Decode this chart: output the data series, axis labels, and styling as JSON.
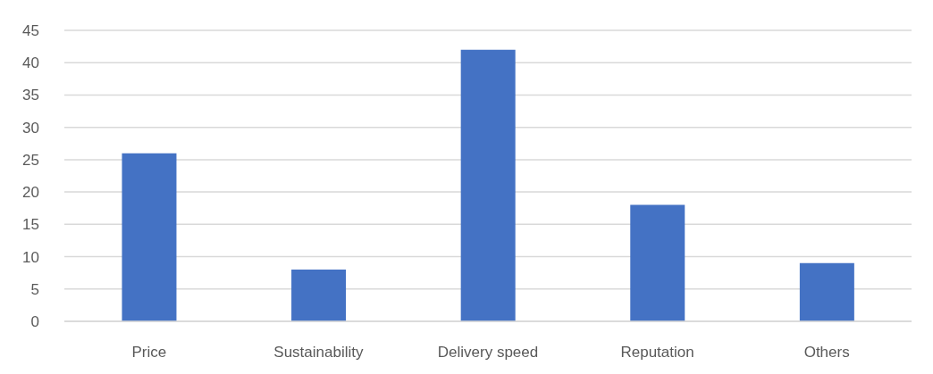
{
  "chart_data": {
    "type": "bar",
    "categories": [
      "Price",
      "Sustainability",
      "Delivery speed",
      "Reputation",
      "Others"
    ],
    "values": [
      26,
      8,
      42,
      18,
      9
    ],
    "color": "#4472c4",
    "ylim": [
      0,
      45
    ],
    "yticks": [
      0,
      5,
      10,
      15,
      20,
      25,
      30,
      35,
      40,
      45
    ],
    "grid": "y"
  }
}
